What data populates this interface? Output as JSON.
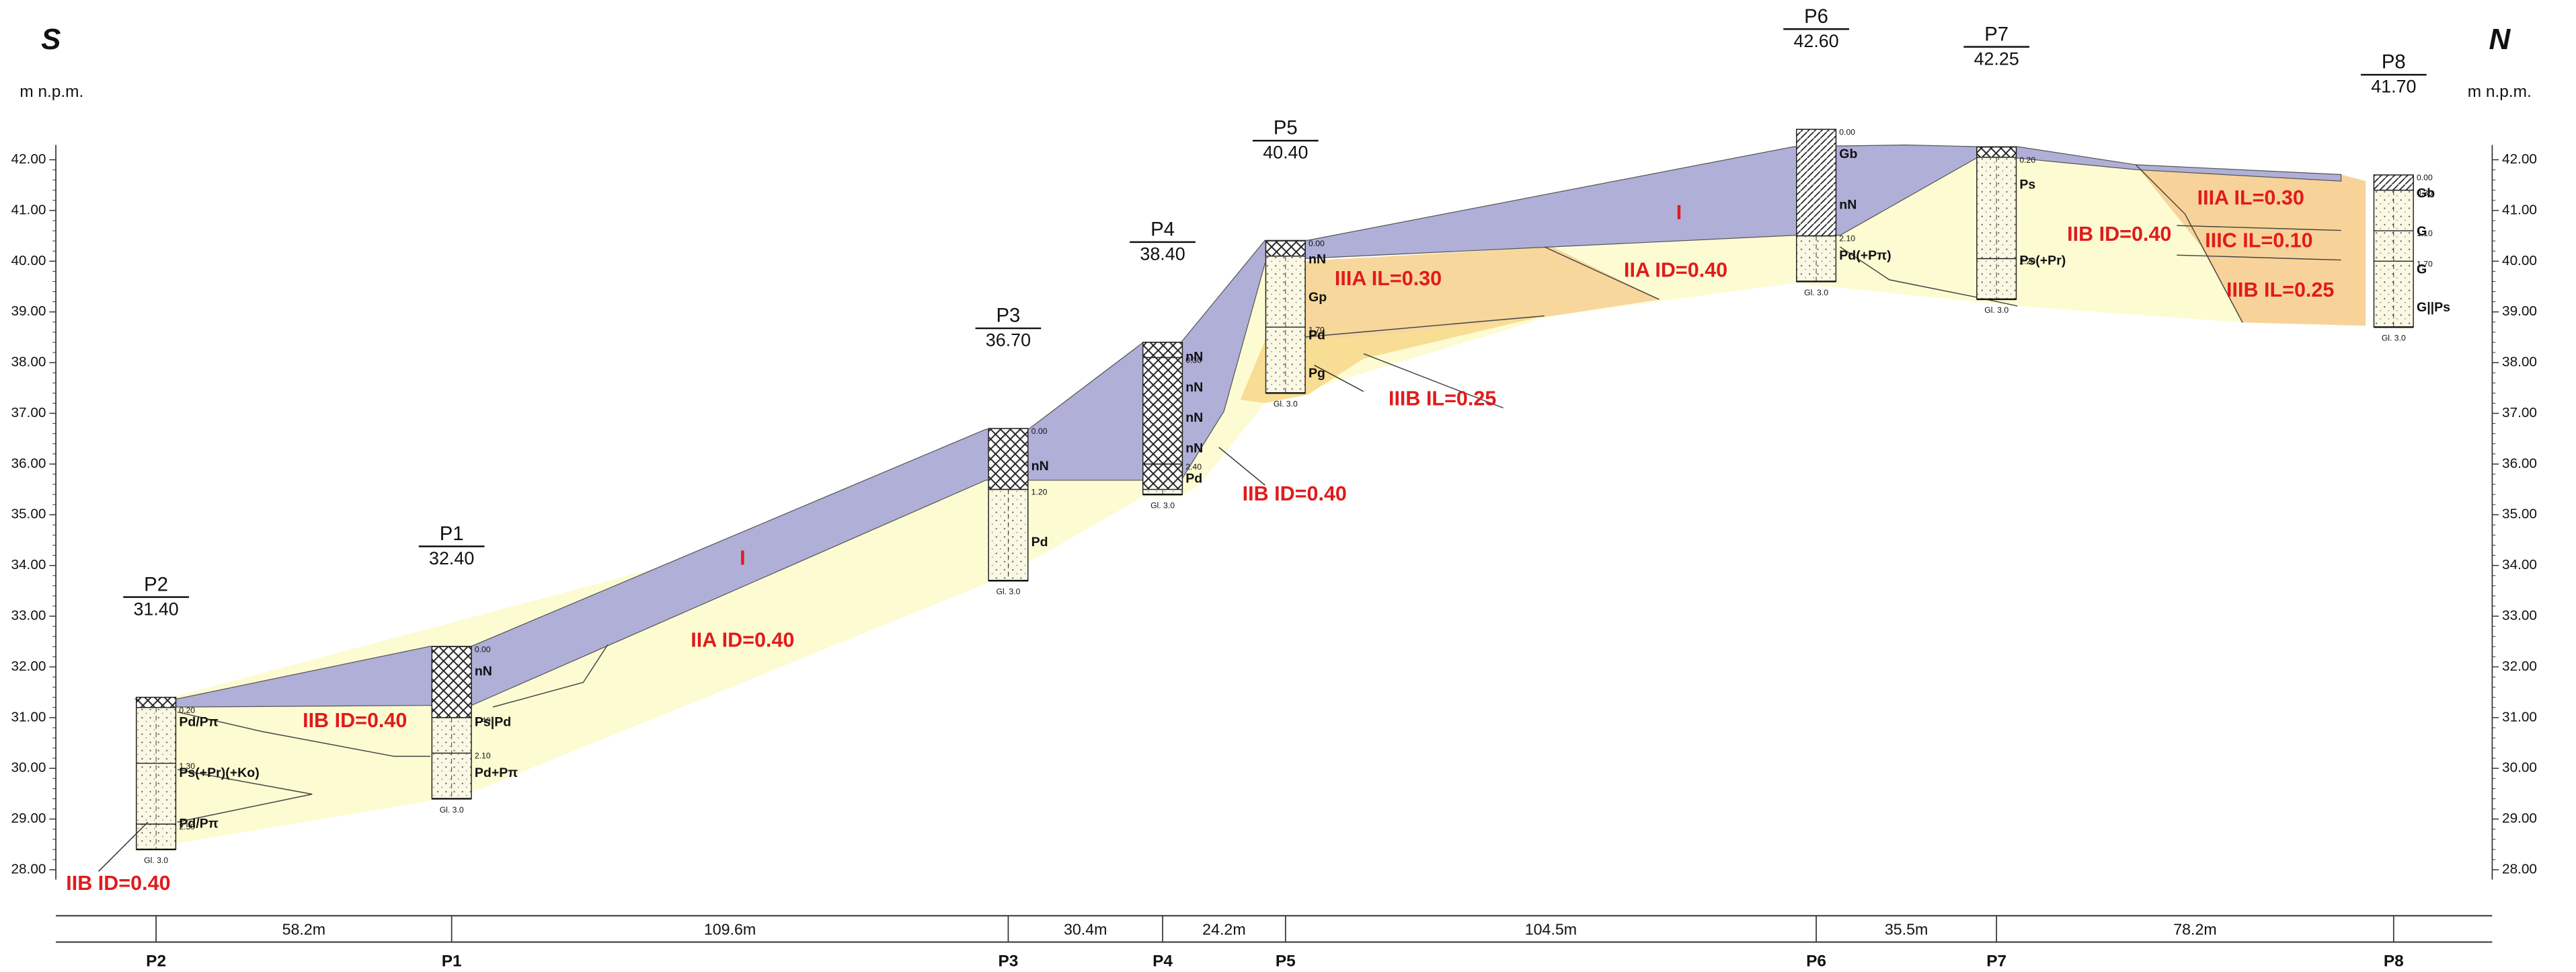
{
  "header": {
    "left": "S",
    "right": "N",
    "unit_left": "m n.p.m.",
    "unit_right": "m n.p.m."
  },
  "axis": {
    "ticks": [
      {
        "value": 42,
        "label": "42.00"
      },
      {
        "value": 41,
        "label": "41.00"
      },
      {
        "value": 40,
        "label": "40.00"
      },
      {
        "value": 39,
        "label": "39.00"
      },
      {
        "value": 38,
        "label": "38.00"
      },
      {
        "value": 37,
        "label": "37.00"
      },
      {
        "value": 36,
        "label": "36.00"
      },
      {
        "value": 35,
        "label": "35.00"
      },
      {
        "value": 34,
        "label": "34.00"
      },
      {
        "value": 33,
        "label": "33.00"
      },
      {
        "value": 32,
        "label": "32.00"
      },
      {
        "value": 31,
        "label": "31.00"
      },
      {
        "value": 30,
        "label": "30.00"
      },
      {
        "value": 29,
        "label": "29.00"
      },
      {
        "value": 28,
        "label": "28.00"
      }
    ]
  },
  "boreholes": [
    {
      "name": "P2",
      "elevation": {
        "value": 31.4,
        "label": "31.40"
      },
      "depths": [
        {
          "value": 0.2,
          "label": "0.20"
        },
        {
          "value": 1.3,
          "label": "1.30"
        },
        {
          "value": 2.5,
          "label": "2.50"
        }
      ],
      "soils": [
        "Pd/Pπ",
        "Ps(+Pr)(+Ko)",
        "Pd/Pπ"
      ],
      "bottom": {
        "value": 3.0,
        "label": "Gl. 3.0"
      }
    },
    {
      "name": "P1",
      "elevation": {
        "value": 32.4,
        "label": "32.40"
      },
      "depths": [
        {
          "value": 0,
          "label": "0.00"
        },
        {
          "value": 1.4,
          "label": "1.40"
        },
        {
          "value": 2.1,
          "label": "2.10"
        }
      ],
      "soils": [
        "nN",
        "Ps|Pd",
        "Pd+Pπ"
      ],
      "bottom": {
        "value": 3.0,
        "label": "Gl. 3.0"
      }
    },
    {
      "name": "P3",
      "elevation": {
        "value": 36.7,
        "label": "36.70"
      },
      "depths": [
        {
          "value": 0,
          "label": "0.00"
        },
        {
          "value": 1.2,
          "label": "1.20"
        }
      ],
      "soils": [
        "nN",
        "Pd"
      ],
      "bottom": {
        "value": 3.0,
        "label": "Gl. 3.0"
      }
    },
    {
      "name": "P4",
      "elevation": {
        "value": 38.4,
        "label": "38.40"
      },
      "depths": [
        {
          "value": 0.3,
          "label": "0.30"
        },
        {
          "value": 2.4,
          "label": "2.40"
        }
      ],
      "soils": [
        "nN",
        "nN",
        "nN",
        "nN",
        "Pd"
      ],
      "bottom": {
        "value": 3.0,
        "label": "Gl. 3.0"
      }
    },
    {
      "name": "P5",
      "elevation": {
        "value": 40.4,
        "label": "40.40"
      },
      "depths": [
        {
          "value": 0,
          "label": "0.00"
        },
        {
          "value": 1.7,
          "label": "1.70"
        }
      ],
      "soils": [
        "nN",
        "Gp",
        "Pd",
        "Pg"
      ],
      "bottom": {
        "value": 3.0,
        "label": "Gl. 3.0"
      }
    },
    {
      "name": "P6",
      "elevation": {
        "value": 42.6,
        "label": "42.60"
      },
      "depths": [
        {
          "value": 0,
          "label": "0.00"
        },
        {
          "value": 2.1,
          "label": "2.10"
        }
      ],
      "soils": [
        "Gb",
        "nN",
        "Pd(+Pπ)"
      ],
      "bottom": {
        "value": 3.0,
        "label": "Gl. 3.0"
      }
    },
    {
      "name": "P7",
      "elevation": {
        "value": 42.25,
        "label": "42.25"
      },
      "depths": [
        {
          "value": 0.2,
          "label": "0.20"
        },
        {
          "value": 2.2,
          "label": "2.20"
        }
      ],
      "soils": [
        "Ps",
        "Ps(+Pr)"
      ],
      "bottom": {
        "value": 3.0,
        "label": "Gl. 3.0"
      }
    },
    {
      "name": "P8",
      "elevation": {
        "value": 41.7,
        "label": "41.70"
      },
      "depths": [
        {
          "value": 0,
          "label": "0.00"
        },
        {
          "value": 0.3,
          "label": "0.30"
        },
        {
          "value": 1.1,
          "label": "1.10"
        },
        {
          "value": 1.7,
          "label": "1.70"
        }
      ],
      "soils": [
        "Gb",
        "G",
        "G",
        "G||Ps"
      ],
      "bottom": {
        "value": 3.0,
        "label": "Gl. 3.0"
      }
    }
  ],
  "distances": [
    {
      "value": 58.2,
      "label": "58.2m"
    },
    {
      "value": 109.6,
      "label": "109.6m"
    },
    {
      "value": 30.4,
      "label": "30.4m"
    },
    {
      "value": 24.2,
      "label": "24.2m"
    },
    {
      "value": 104.5,
      "label": "104.5m"
    },
    {
      "value": 35.5,
      "label": "35.5m"
    },
    {
      "value": 78.2,
      "label": "78.2m"
    }
  ],
  "zones": [
    "I",
    "I",
    "IIA ID=0.40",
    "IIA ID=0.40",
    "IIB ID=0.40",
    "IIB ID=0.40",
    "IIB ID=0.40",
    "IIB ID=0.40",
    "IIIA IL=0.30",
    "IIIA IL=0.30",
    "IIIB IL=0.25",
    "IIIB IL=0.25",
    "IIIC IL=0.10"
  ]
}
